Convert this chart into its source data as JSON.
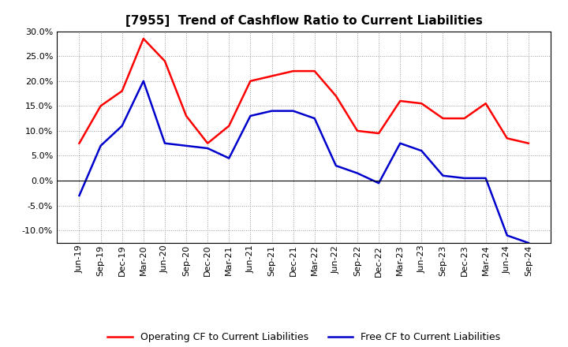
{
  "title": "[7955]  Trend of Cashflow Ratio to Current Liabilities",
  "labels": [
    "Jun-19",
    "Sep-19",
    "Dec-19",
    "Mar-20",
    "Jun-20",
    "Sep-20",
    "Dec-20",
    "Mar-21",
    "Jun-21",
    "Sep-21",
    "Dec-21",
    "Mar-22",
    "Jun-22",
    "Sep-22",
    "Dec-22",
    "Mar-23",
    "Jun-23",
    "Sep-23",
    "Dec-23",
    "Mar-24",
    "Jun-24",
    "Sep-24"
  ],
  "operating_cf": [
    7.5,
    15.0,
    18.0,
    28.5,
    24.0,
    13.0,
    7.5,
    11.0,
    20.0,
    21.0,
    22.0,
    22.0,
    17.0,
    10.0,
    9.5,
    16.0,
    15.5,
    12.5,
    12.5,
    15.5,
    8.5,
    7.5
  ],
  "free_cf": [
    -3.0,
    7.0,
    11.0,
    20.0,
    7.5,
    7.0,
    6.5,
    4.5,
    13.0,
    14.0,
    14.0,
    12.5,
    3.0,
    1.5,
    -0.5,
    7.5,
    6.0,
    1.0,
    0.5,
    0.5,
    -11.0,
    -12.5
  ],
  "operating_cf_color": "#FF0000",
  "free_cf_color": "#0000CC",
  "ylim_min": -12.5,
  "ylim_max": 30.0,
  "yticks": [
    -10.0,
    -5.0,
    0.0,
    5.0,
    10.0,
    15.0,
    20.0,
    25.0,
    30.0
  ],
  "background_color": "#FFFFFF",
  "plot_bg_color": "#FFFFFF",
  "grid_color": "#999999",
  "legend_operating": "Operating CF to Current Liabilities",
  "legend_free": "Free CF to Current Liabilities",
  "title_fontsize": 11,
  "axis_fontsize": 8,
  "legend_fontsize": 9
}
